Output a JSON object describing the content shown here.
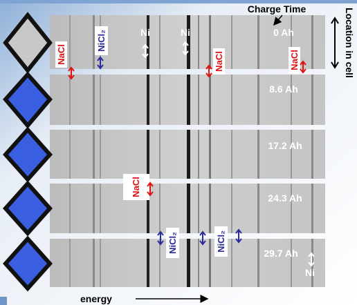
{
  "header": {
    "title": "Charge Time",
    "side_label": "Location in cell"
  },
  "panels": [
    "0 Ah",
    "8.6 Ah",
    "17.2 Ah",
    "24.3 Ah",
    "29.7 Ah"
  ],
  "labels": [
    "NaCl",
    "NiCl₂",
    "Ni",
    "Ni",
    "NaCl",
    "NaCl",
    "NaCl",
    "NiCl₂",
    "NiCl₂",
    "Ni"
  ],
  "axis": {
    "label": "energy"
  }
}
